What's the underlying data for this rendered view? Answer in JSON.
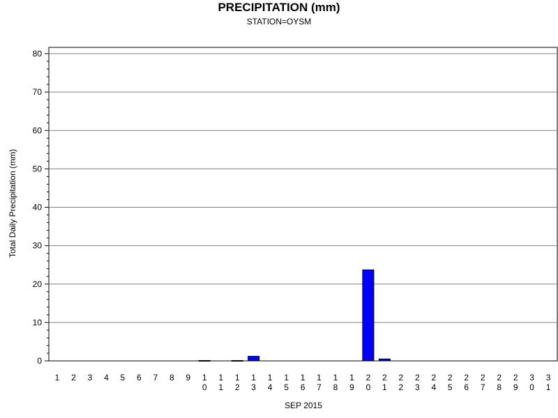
{
  "chart_data": {
    "type": "bar",
    "title": "PRECIPITATION (mm)",
    "subtitle": "STATION=OYSM",
    "xlabel": "SEP 2015",
    "ylabel": "Total Daily Precipitation (mm)",
    "ylim": [
      0,
      80
    ],
    "yticks": [
      0,
      10,
      20,
      30,
      40,
      50,
      60,
      70,
      80
    ],
    "grid": true,
    "bar_color": "#0000ff",
    "categories": [
      "1",
      "2",
      "3",
      "4",
      "5",
      "6",
      "7",
      "8",
      "9",
      "10",
      "11",
      "12",
      "13",
      "14",
      "15",
      "16",
      "17",
      "18",
      "19",
      "20",
      "21",
      "22",
      "23",
      "24",
      "25",
      "26",
      "27",
      "28",
      "29",
      "30",
      "31"
    ],
    "values": [
      0,
      0,
      0,
      0,
      0,
      0,
      0,
      0,
      0,
      0.1,
      0,
      0.1,
      1.2,
      0,
      0,
      0,
      0,
      0,
      0,
      23.7,
      0.5,
      0,
      0,
      0,
      0,
      0,
      0,
      0,
      0,
      0,
      0
    ]
  }
}
